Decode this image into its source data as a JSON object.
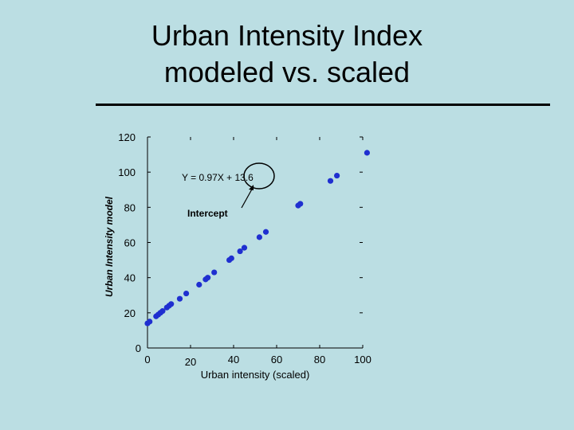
{
  "slide": {
    "title_line1": "Urban Intensity Index",
    "title_line2": "modeled vs. scaled"
  },
  "chart_data": {
    "type": "scatter",
    "xlabel": "Urban intensity (scaled)",
    "ylabel": "Urban Intensity model",
    "xlim": [
      0,
      100
    ],
    "ylim": [
      0,
      120
    ],
    "xticks": [
      "0",
      "20",
      "40",
      "60",
      "80",
      "100"
    ],
    "yticks": [
      "0",
      "20",
      "40",
      "60",
      "80",
      "100",
      "120"
    ],
    "grid": false,
    "series": [
      {
        "color": "#1f2fd0",
        "points": [
          [
            0,
            14
          ],
          [
            1,
            15
          ],
          [
            4,
            18
          ],
          [
            5,
            19
          ],
          [
            6,
            20
          ],
          [
            7,
            21
          ],
          [
            9,
            23
          ],
          [
            10,
            24
          ],
          [
            11,
            25
          ],
          [
            15,
            28
          ],
          [
            18,
            31
          ],
          [
            24,
            36
          ],
          [
            27,
            39
          ],
          [
            28,
            40
          ],
          [
            31,
            43
          ],
          [
            38,
            50
          ],
          [
            39,
            51
          ],
          [
            43,
            55
          ],
          [
            45,
            57
          ],
          [
            52,
            63
          ],
          [
            55,
            66
          ],
          [
            70,
            81
          ],
          [
            71,
            82
          ],
          [
            85,
            95
          ],
          [
            88,
            98
          ],
          [
            102,
            111
          ]
        ]
      }
    ],
    "annotations": {
      "equation": "Y = 0.97X + 13.6",
      "intercept_label": "Intercept"
    }
  }
}
